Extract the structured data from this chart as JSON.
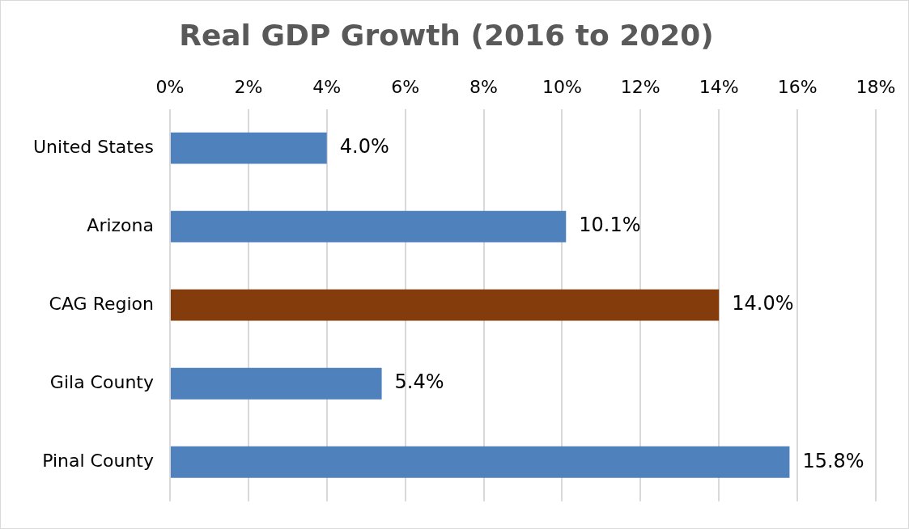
{
  "chart_data": {
    "type": "bar",
    "title": "Real GDP Growth (2016 to 2020)",
    "orientation": "horizontal",
    "categories": [
      "United States",
      "Arizona",
      "CAG Region",
      "Gila County",
      "Pinal County"
    ],
    "values": [
      4.0,
      10.1,
      14.0,
      5.4,
      15.8
    ],
    "colors": [
      "#4f81bd",
      "#4f81bd",
      "#843c0c",
      "#4f81bd",
      "#4f81bd"
    ],
    "value_labels": [
      "4.0%",
      "10.1%",
      "14.0%",
      "5.4%",
      "15.8%"
    ],
    "xlim": [
      0,
      18
    ],
    "xticks": [
      {
        "value": 0,
        "label": "0%"
      },
      {
        "value": 2,
        "label": "2%"
      },
      {
        "value": 4,
        "label": "4%"
      },
      {
        "value": 6,
        "label": "6%"
      },
      {
        "value": 8,
        "label": "8%"
      },
      {
        "value": 10,
        "label": "10%"
      },
      {
        "value": 12,
        "label": "12%"
      },
      {
        "value": 14,
        "label": "14%"
      },
      {
        "value": 16,
        "label": "16%"
      },
      {
        "value": 18,
        "label": "18%"
      }
    ],
    "grid": "x",
    "legend": false
  }
}
